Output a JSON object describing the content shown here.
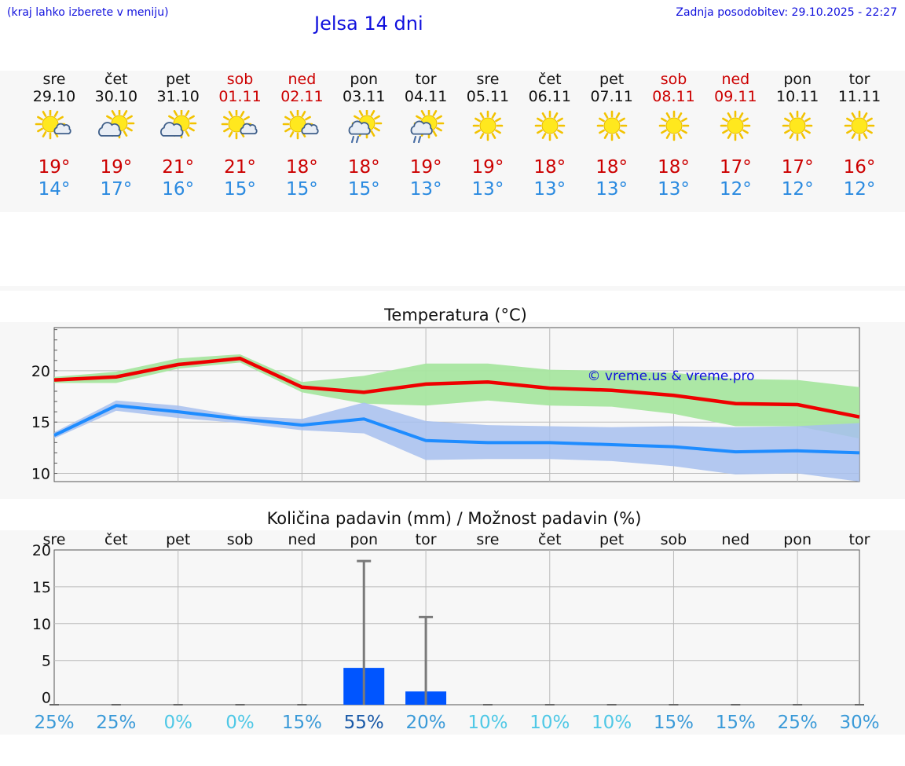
{
  "header": {
    "location_hint": "(kraj lahko izberete v meniju)",
    "title": "Jelsa 14 dni",
    "last_update": "Zadnja posodobitev: 29.10.2025 - 22:27"
  },
  "colors": {
    "weekday": "#111111",
    "weekend": "#cc0000",
    "max_temp": "#cc0000",
    "min_temp": "#2a8ae0",
    "max_line": "#ee0000",
    "max_band": "#a8e6a0",
    "min_line": "#1e8cff",
    "min_band": "#a7c0ef",
    "precip_bar": "#0055ff",
    "link": "#1010dd"
  },
  "days": [
    {
      "name": "sre",
      "date": "29.10",
      "weekend": false,
      "icon": "sun-cloud-icon",
      "max": "19°",
      "min": "14°"
    },
    {
      "name": "čet",
      "date": "30.10",
      "weekend": false,
      "icon": "cloud-sun-icon",
      "max": "19°",
      "min": "17°"
    },
    {
      "name": "pet",
      "date": "31.10",
      "weekend": false,
      "icon": "cloud-sun-icon",
      "max": "21°",
      "min": "16°"
    },
    {
      "name": "sob",
      "date": "01.11",
      "weekend": true,
      "icon": "sun-cloud-icon",
      "max": "21°",
      "min": "15°"
    },
    {
      "name": "ned",
      "date": "02.11",
      "weekend": true,
      "icon": "sun-cloud-icon",
      "max": "18°",
      "min": "15°"
    },
    {
      "name": "pon",
      "date": "03.11",
      "weekend": false,
      "icon": "sun-rain-icon",
      "max": "18°",
      "min": "15°"
    },
    {
      "name": "tor",
      "date": "04.11",
      "weekend": false,
      "icon": "sun-rain-icon",
      "max": "19°",
      "min": "13°"
    },
    {
      "name": "sre",
      "date": "05.11",
      "weekend": false,
      "icon": "sun-icon",
      "max": "19°",
      "min": "13°"
    },
    {
      "name": "čet",
      "date": "06.11",
      "weekend": false,
      "icon": "sun-icon",
      "max": "18°",
      "min": "13°"
    },
    {
      "name": "pet",
      "date": "07.11",
      "weekend": false,
      "icon": "sun-icon",
      "max": "18°",
      "min": "13°"
    },
    {
      "name": "sob",
      "date": "08.11",
      "weekend": true,
      "icon": "sun-icon",
      "max": "18°",
      "min": "13°"
    },
    {
      "name": "ned",
      "date": "09.11",
      "weekend": true,
      "icon": "sun-icon",
      "max": "17°",
      "min": "12°"
    },
    {
      "name": "pon",
      "date": "10.11",
      "weekend": false,
      "icon": "sun-icon",
      "max": "17°",
      "min": "12°"
    },
    {
      "name": "tor",
      "date": "11.11",
      "weekend": false,
      "icon": "sun-icon",
      "max": "16°",
      "min": "12°"
    }
  ],
  "chart_data": [
    {
      "type": "line",
      "title": "Temperatura (°C)",
      "xlabel": "",
      "ylabel": "",
      "x": [
        0,
        1,
        2,
        3,
        4,
        5,
        6,
        7,
        8,
        9,
        10,
        11,
        12,
        13
      ],
      "ylim": [
        9.2,
        24.2
      ],
      "yticks": [
        "10",
        "15",
        "20"
      ],
      "watermark": "© vreme.us & vreme.pro",
      "series": [
        {
          "name": "max",
          "values": [
            19.1,
            19.4,
            20.6,
            21.2,
            18.4,
            17.9,
            18.7,
            18.9,
            18.3,
            18.1,
            17.6,
            16.8,
            16.7,
            15.5
          ],
          "band_low": [
            18.8,
            18.8,
            20.2,
            20.8,
            17.9,
            16.8,
            16.6,
            17.1,
            16.6,
            16.5,
            15.8,
            14.6,
            14.6,
            13.4
          ],
          "band_high": [
            19.4,
            19.9,
            21.2,
            21.6,
            18.9,
            19.5,
            20.7,
            20.7,
            20.1,
            20.0,
            19.8,
            19.2,
            19.1,
            18.4
          ]
        },
        {
          "name": "min",
          "values": [
            13.7,
            16.6,
            16.0,
            15.3,
            14.7,
            15.3,
            13.2,
            13.0,
            13.0,
            12.8,
            12.6,
            12.1,
            12.2,
            12.0
          ],
          "band_low": [
            13.4,
            16.1,
            15.4,
            14.9,
            14.2,
            13.9,
            11.3,
            11.4,
            11.4,
            11.2,
            10.7,
            9.9,
            10.0,
            9.2
          ],
          "band_high": [
            14.0,
            17.1,
            16.6,
            15.6,
            15.3,
            16.9,
            15.1,
            14.7,
            14.6,
            14.5,
            14.6,
            14.5,
            14.6,
            14.9
          ]
        }
      ]
    },
    {
      "type": "bar",
      "title": "Količina padavin (mm) / Možnost padavin (%)",
      "xlabel": "",
      "ylabel": "",
      "categories": [
        "sre",
        "čet",
        "pet",
        "sob",
        "ned",
        "pon",
        "tor",
        "sre",
        "čet",
        "pet",
        "sob",
        "ned",
        "pon",
        "tor"
      ],
      "values": [
        0,
        0,
        0,
        0,
        0,
        4.0,
        0.8,
        0,
        0,
        0,
        0,
        0,
        0,
        0
      ],
      "error_high": [
        0,
        0,
        0,
        0,
        0,
        18.5,
        10.9,
        0,
        0,
        0,
        0,
        0,
        0,
        0
      ],
      "probability": [
        "25%",
        "25%",
        "0%",
        "0%",
        "15%",
        "55%",
        "20%",
        "10%",
        "10%",
        "10%",
        "15%",
        "15%",
        "25%",
        "30%"
      ],
      "probability_values": [
        25,
        25,
        0,
        0,
        15,
        55,
        20,
        10,
        10,
        10,
        15,
        15,
        25,
        30
      ],
      "ylim": [
        -1,
        20
      ],
      "yticks": [
        "0",
        "5",
        "10",
        "15",
        "20"
      ]
    }
  ]
}
